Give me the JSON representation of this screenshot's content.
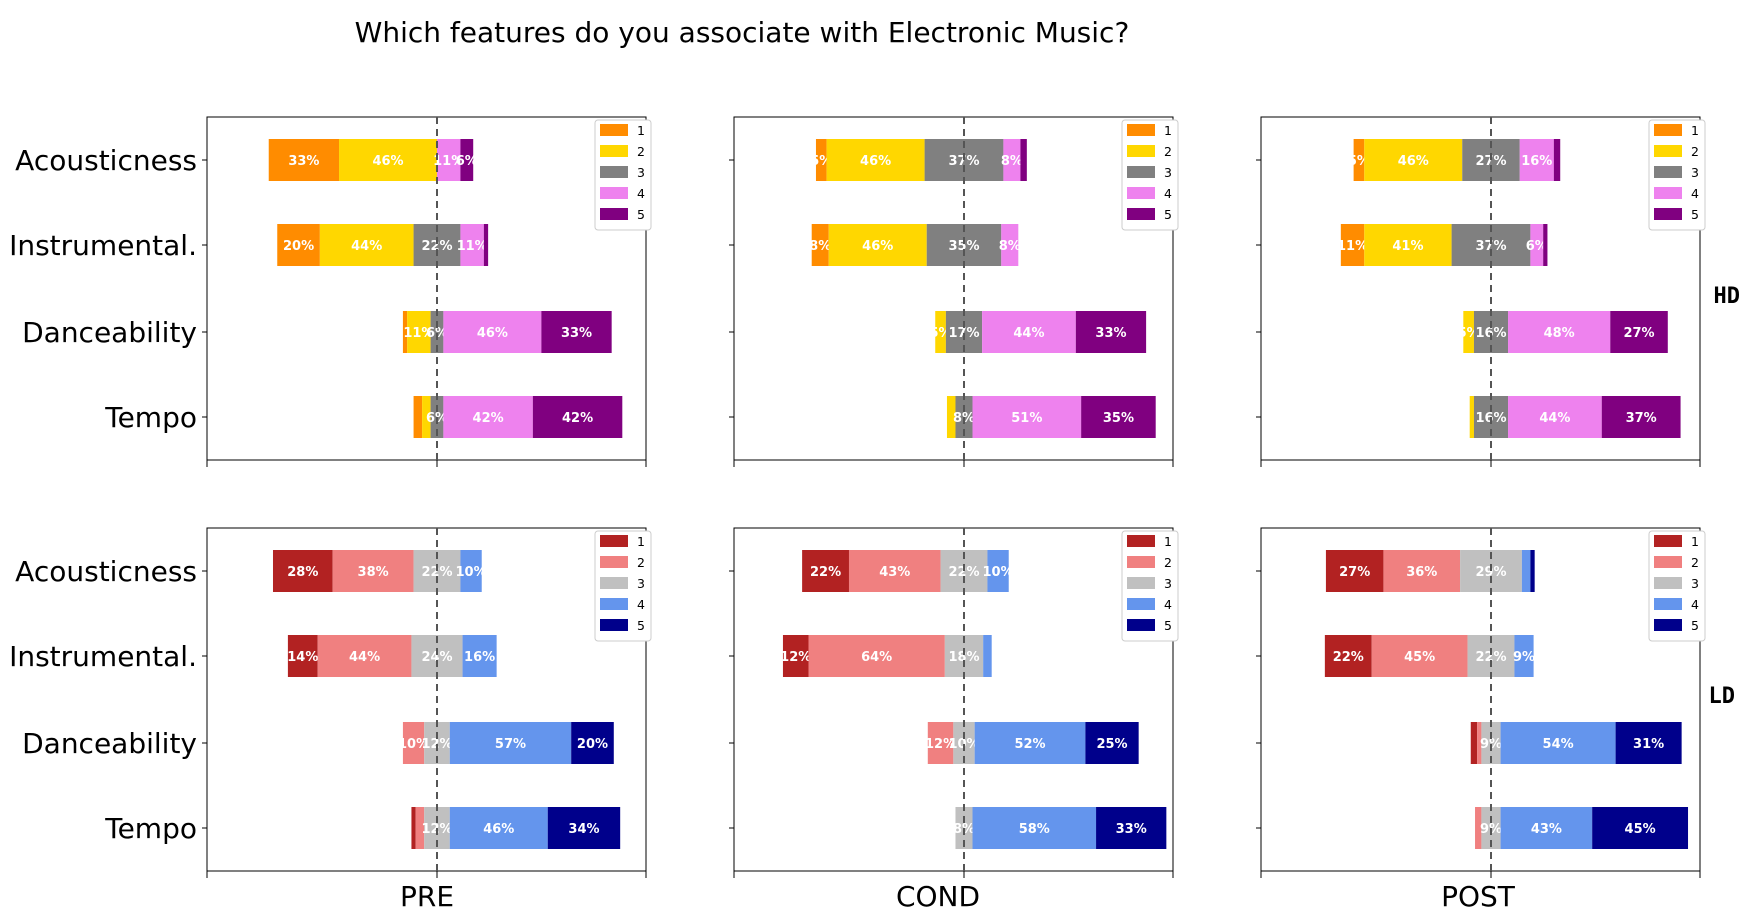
{
  "title": "Which features do you associate with Electronic Music?",
  "columns": [
    "PRE",
    "COND",
    "POST"
  ],
  "row_groups": [
    "HD",
    "LD"
  ],
  "categories": [
    "Acousticness",
    "Instrumental.",
    "Danceability",
    "Tempo"
  ],
  "legend_labels": [
    "1",
    "2",
    "3",
    "4",
    "5"
  ],
  "colors": {
    "HD": [
      "#ff8c00",
      "#ffd700",
      "#808080",
      "#ee82ee",
      "#800080"
    ],
    "LD": [
      "#b22222",
      "#f08080",
      "#c0c0c0",
      "#6495ed",
      "#00008b"
    ]
  },
  "chart_data": [
    {
      "type": "bar",
      "group": "HD",
      "column": "PRE",
      "categories": [
        "Acousticness",
        "Instrumental.",
        "Danceability",
        "Tempo"
      ],
      "values": [
        [
          33,
          46,
          0,
          11,
          6
        ],
        [
          20,
          44,
          22,
          11,
          2
        ],
        [
          2,
          11,
          6,
          46,
          33
        ],
        [
          4,
          4,
          6,
          42,
          42
        ]
      ]
    },
    {
      "type": "bar",
      "group": "HD",
      "column": "COND",
      "categories": [
        "Acousticness",
        "Instrumental.",
        "Danceability",
        "Tempo"
      ],
      "values": [
        [
          5,
          46,
          37,
          8,
          3
        ],
        [
          8,
          46,
          35,
          8,
          0
        ],
        [
          0,
          5,
          17,
          44,
          33
        ],
        [
          0,
          4,
          8,
          51,
          35
        ]
      ]
    },
    {
      "type": "bar",
      "group": "HD",
      "column": "POST",
      "categories": [
        "Acousticness",
        "Instrumental.",
        "Danceability",
        "Tempo"
      ],
      "values": [
        [
          5,
          46,
          27,
          16,
          3
        ],
        [
          11,
          41,
          37,
          6,
          2
        ],
        [
          0,
          5,
          16,
          48,
          27
        ],
        [
          0,
          2,
          16,
          44,
          37
        ]
      ]
    },
    {
      "type": "bar",
      "group": "LD",
      "column": "PRE",
      "categories": [
        "Acousticness",
        "Instrumental.",
        "Danceability",
        "Tempo"
      ],
      "values": [
        [
          28,
          38,
          22,
          10,
          0
        ],
        [
          14,
          44,
          24,
          16,
          0
        ],
        [
          0,
          10,
          12,
          57,
          20
        ],
        [
          2,
          4,
          12,
          46,
          34
        ]
      ]
    },
    {
      "type": "bar",
      "group": "LD",
      "column": "COND",
      "categories": [
        "Acousticness",
        "Instrumental.",
        "Danceability",
        "Tempo"
      ],
      "values": [
        [
          22,
          43,
          22,
          10,
          0
        ],
        [
          12,
          64,
          18,
          4,
          0
        ],
        [
          0,
          12,
          10,
          52,
          25
        ],
        [
          0,
          0,
          8,
          58,
          33
        ]
      ]
    },
    {
      "type": "bar",
      "group": "LD",
      "column": "POST",
      "categories": [
        "Acousticness",
        "Instrumental.",
        "Danceability",
        "Tempo"
      ],
      "values": [
        [
          27,
          36,
          29,
          4,
          2
        ],
        [
          22,
          45,
          22,
          9,
          0
        ],
        [
          3,
          2,
          9,
          54,
          31
        ],
        [
          0,
          3,
          9,
          43,
          45
        ]
      ]
    }
  ]
}
